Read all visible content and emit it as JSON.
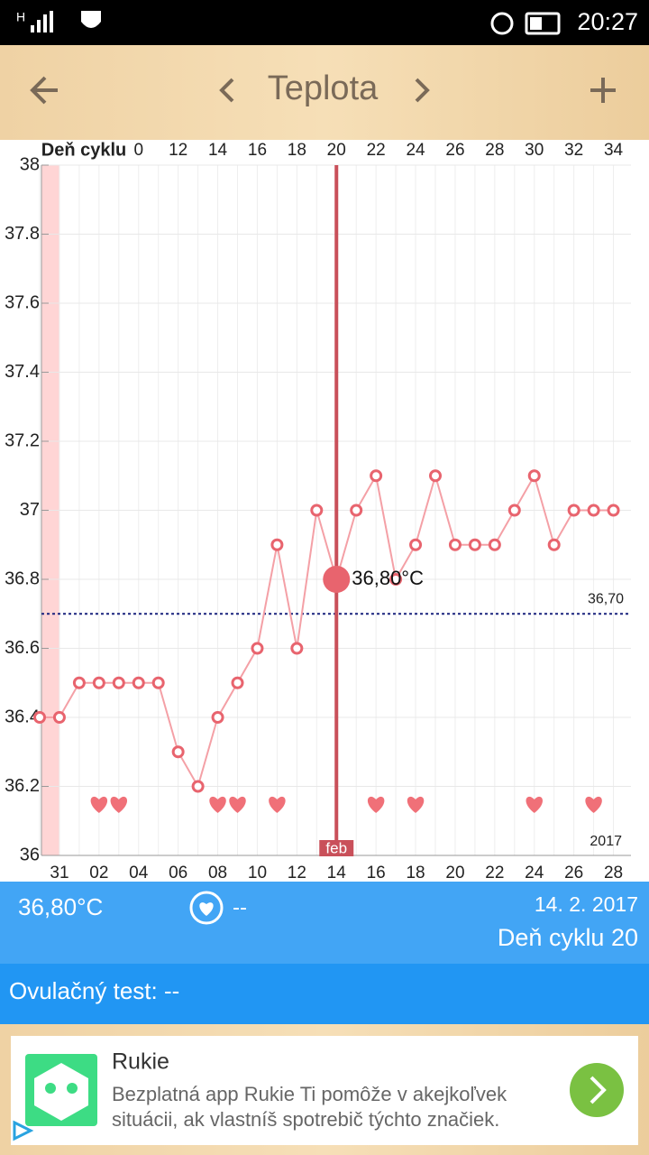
{
  "status_bar": {
    "network": "H",
    "time": "20:27"
  },
  "header": {
    "title": "Teplota"
  },
  "chart_data": {
    "type": "line",
    "x_top_label": "Deň cyklu",
    "categories": [
      null,
      "31",
      null,
      "02",
      null,
      "04",
      null,
      "06",
      null,
      "08",
      null,
      "10",
      null,
      "12",
      null,
      "14",
      null,
      "16",
      null,
      "18",
      null,
      "20",
      null,
      "22",
      null,
      "24",
      null,
      "26",
      null,
      "28"
    ],
    "cycle_days": [
      null,
      null,
      null,
      null,
      null,
      0,
      null,
      12,
      null,
      14,
      null,
      16,
      null,
      18,
      null,
      20,
      null,
      22,
      null,
      24,
      null,
      26,
      null,
      28,
      null,
      30,
      null,
      32,
      null,
      34
    ],
    "values": [
      36.4,
      36.4,
      36.5,
      36.5,
      36.5,
      36.5,
      36.5,
      36.3,
      36.2,
      36.4,
      36.5,
      36.6,
      36.9,
      36.6,
      37.0,
      36.8,
      37.0,
      37.1,
      36.8,
      36.9,
      37.1,
      36.9,
      36.9,
      36.9,
      37.0,
      37.1,
      36.9,
      37.0,
      37.0,
      37.0
    ],
    "hearts": [
      false,
      false,
      false,
      true,
      true,
      false,
      false,
      false,
      false,
      true,
      true,
      false,
      true,
      false,
      false,
      false,
      false,
      true,
      false,
      true,
      false,
      false,
      false,
      false,
      false,
      true,
      false,
      false,
      true,
      false
    ],
    "color": "#e8646e",
    "ylim": [
      36,
      38
    ],
    "yticks": [
      36,
      36.2,
      36.4,
      36.6,
      36.8,
      37,
      37.2,
      37.4,
      37.6,
      37.8,
      38
    ],
    "grid": true,
    "coverline": {
      "value": 36.7,
      "label": "36,70"
    },
    "selected": {
      "index": 15,
      "label": "36,80°C",
      "month": "feb"
    },
    "year_label": "2017"
  },
  "info": {
    "temperature": "36,80°C",
    "sex": "--",
    "date": "14. 2. 2017",
    "cycle_day": "Deň cyklu 20",
    "ovulation_test": "Ovulačný test: --"
  },
  "ad": {
    "title": "Rukie",
    "lines": [
      "Bezplatná app Rukie Ti pomôže v akejkoľvek",
      "situácii, ak vlastníš spotrebič týchto značiek."
    ]
  }
}
